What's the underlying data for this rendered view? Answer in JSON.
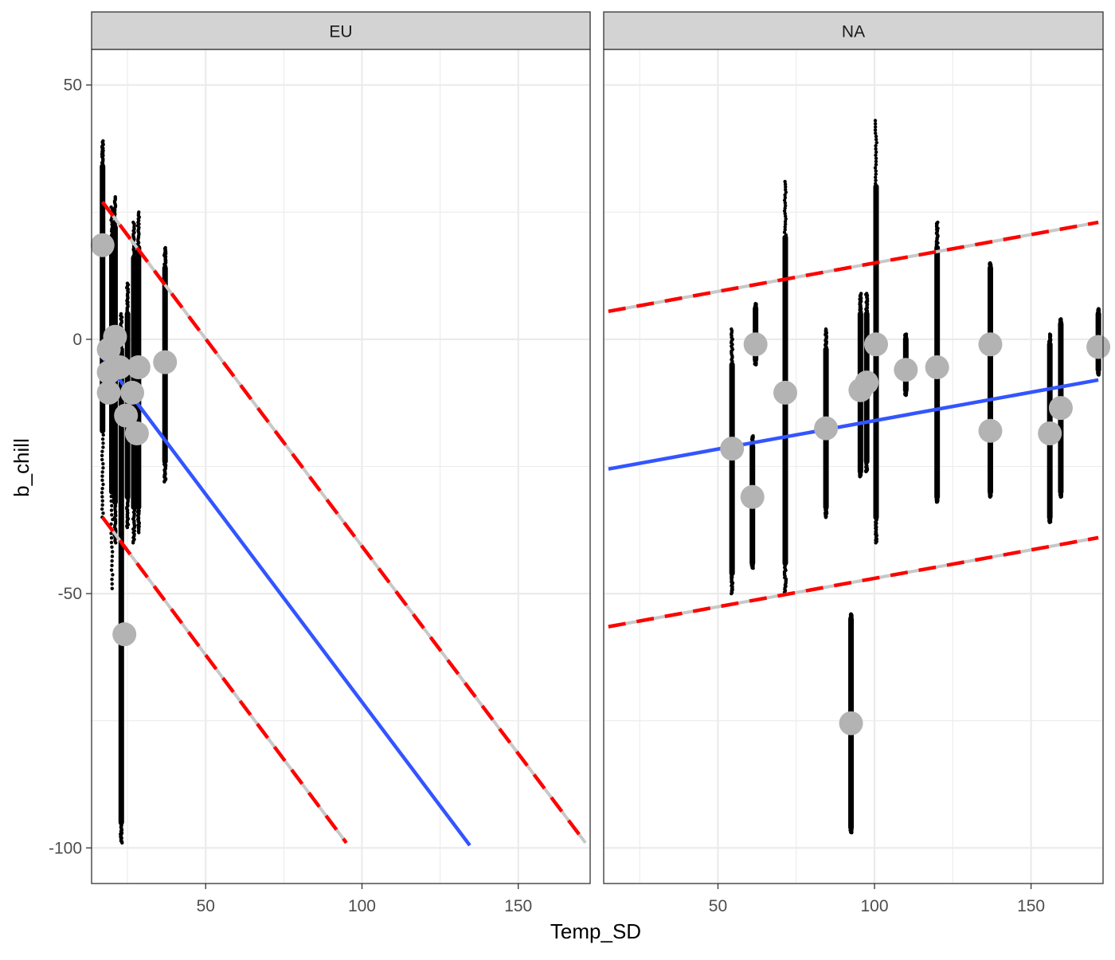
{
  "chart_data": {
    "type": "scatter",
    "title": "",
    "xlabel": "Temp_SD",
    "ylabel": "b_chill",
    "ylim": [
      -107,
      57
    ],
    "y_ticks": [
      50,
      0,
      -50,
      -100
    ],
    "y_tick_labels": [
      "50",
      "0",
      "-50",
      "-100"
    ],
    "x_ticks": [
      50,
      100,
      150
    ],
    "x_tick_labels": [
      "50",
      "100",
      "150"
    ],
    "grid": true,
    "colors": {
      "points": "#000000",
      "means": "#b3b3b3",
      "fit": "#3355ff",
      "interval": "#ff0000",
      "strip": "#d3d3d3",
      "panel_border": "#333333",
      "grid": "#ebebeb"
    },
    "panels": [
      {
        "label": "EU",
        "xlim": [
          13.5,
          173
        ],
        "posterior_columns": [
          {
            "x": 17.0,
            "lo": -35,
            "hi": 39,
            "core_lo": -18,
            "core_hi": 34
          },
          {
            "x": 20.0,
            "lo": -49,
            "hi": 26,
            "core_lo": -30,
            "core_hi": 17
          },
          {
            "x": 21.0,
            "lo": -40,
            "hi": 28,
            "core_lo": -32,
            "core_hi": 22
          },
          {
            "x": 23.0,
            "lo": -99,
            "hi": 5,
            "core_lo": -95,
            "core_hi": -2
          },
          {
            "x": 25.0,
            "lo": -37,
            "hi": 11,
            "core_lo": -31,
            "core_hi": 5
          },
          {
            "x": 27.0,
            "lo": -40,
            "hi": 23,
            "core_lo": -33,
            "core_hi": 16
          },
          {
            "x": 28.5,
            "lo": -38,
            "hi": 25,
            "core_lo": -33,
            "core_hi": 18
          },
          {
            "x": 37.0,
            "lo": -28,
            "hi": 18,
            "core_lo": -24,
            "core_hi": 14
          }
        ],
        "means": [
          {
            "x": 17.0,
            "y": 18.5
          },
          {
            "x": 19.0,
            "y": -2.0
          },
          {
            "x": 21.0,
            "y": 0.5
          },
          {
            "x": 19.0,
            "y": -6.5
          },
          {
            "x": 22.5,
            "y": -5.5
          },
          {
            "x": 19.0,
            "y": -10.5
          },
          {
            "x": 26.5,
            "y": -10.5
          },
          {
            "x": 24.5,
            "y": -15.0
          },
          {
            "x": 28.5,
            "y": -5.5
          },
          {
            "x": 28.0,
            "y": -18.5
          },
          {
            "x": 37.0,
            "y": -4.5
          },
          {
            "x": 24.0,
            "y": -58.0
          }
        ],
        "fit": {
          "x1": 17.0,
          "y1": -3.5,
          "x2": 134.5,
          "y2": -99.5
        },
        "interval_upper": {
          "x1": 17.0,
          "y1": 27.0,
          "x2": 171.5,
          "y2": -99.0
        },
        "interval_lower": {
          "x1": 17.0,
          "y1": -35.0,
          "x2": 95.0,
          "y2": -99.0
        }
      },
      {
        "label": "NA",
        "xlim": [
          13.5,
          173
        ],
        "posterior_columns": [
          {
            "x": 54.5,
            "lo": -50,
            "hi": 2,
            "core_lo": -46,
            "core_hi": -5
          },
          {
            "x": 61.0,
            "lo": -45,
            "hi": -19,
            "core_lo": -44,
            "core_hi": -21
          },
          {
            "x": 62.0,
            "lo": -5,
            "hi": 7,
            "core_lo": -4,
            "core_hi": 6
          },
          {
            "x": 71.5,
            "lo": -50,
            "hi": 31,
            "core_lo": -44,
            "core_hi": 20
          },
          {
            "x": 84.5,
            "lo": -35,
            "hi": 2,
            "core_lo": -33,
            "core_hi": -2
          },
          {
            "x": 92.5,
            "lo": -97,
            "hi": -54,
            "core_lo": -96,
            "core_hi": -55
          },
          {
            "x": 95.5,
            "lo": -27,
            "hi": 9,
            "core_lo": -26,
            "core_hi": 5
          },
          {
            "x": 97.5,
            "lo": -26,
            "hi": 9,
            "core_lo": -24,
            "core_hi": 5
          },
          {
            "x": 100.5,
            "lo": -40,
            "hi": 43,
            "core_lo": -35,
            "core_hi": 30
          },
          {
            "x": 110.0,
            "lo": -11,
            "hi": 1,
            "core_lo": -10,
            "core_hi": 0
          },
          {
            "x": 120.0,
            "lo": -32,
            "hi": 23,
            "core_lo": -31,
            "core_hi": 18
          },
          {
            "x": 137.0,
            "lo": -31,
            "hi": 15,
            "core_lo": -30,
            "core_hi": 14
          },
          {
            "x": 156.0,
            "lo": -36,
            "hi": 1,
            "core_lo": -35,
            "core_hi": -1
          },
          {
            "x": 159.5,
            "lo": -31,
            "hi": 4,
            "core_lo": -30,
            "core_hi": 3
          },
          {
            "x": 171.5,
            "lo": -7,
            "hi": 6,
            "core_lo": -6,
            "core_hi": 5
          }
        ],
        "means": [
          {
            "x": 54.5,
            "y": -21.5
          },
          {
            "x": 61.0,
            "y": -31.0
          },
          {
            "x": 62.0,
            "y": -1.0
          },
          {
            "x": 71.5,
            "y": -10.5
          },
          {
            "x": 84.5,
            "y": -17.5
          },
          {
            "x": 92.5,
            "y": -75.5
          },
          {
            "x": 95.5,
            "y": -10.0
          },
          {
            "x": 97.5,
            "y": -8.5
          },
          {
            "x": 100.5,
            "y": -1.0
          },
          {
            "x": 110.0,
            "y": -6.0
          },
          {
            "x": 120.0,
            "y": -5.5
          },
          {
            "x": 137.0,
            "y": -1.0
          },
          {
            "x": 137.0,
            "y": -18.0
          },
          {
            "x": 156.0,
            "y": -18.5
          },
          {
            "x": 159.5,
            "y": -13.5
          },
          {
            "x": 171.5,
            "y": -1.5
          }
        ],
        "fit": {
          "x1": 15.0,
          "y1": -25.5,
          "x2": 171.5,
          "y2": -8.0
        },
        "interval_upper": {
          "x1": 15.0,
          "y1": 5.5,
          "x2": 171.5,
          "y2": 23.0
        },
        "interval_lower": {
          "x1": 15.0,
          "y1": -56.5,
          "x2": 171.5,
          "y2": -39.0
        }
      }
    ]
  }
}
